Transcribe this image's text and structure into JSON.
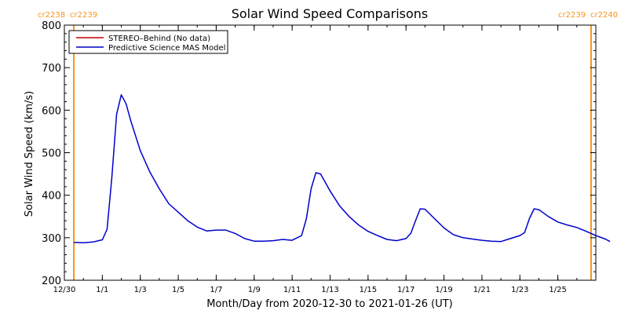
{
  "chart_data": {
    "type": "line",
    "title": "Solar Wind Speed Comparisons",
    "xlabel": "Month/Day from 2020-12-30 to 2021-01-26 (UT)",
    "ylabel": "Solar Wind Speed (km/s)",
    "ylim": [
      200,
      800
    ],
    "xlim": [
      "2020-12-30",
      "2021-01-27"
    ],
    "yticks": [
      200,
      300,
      400,
      500,
      600,
      700,
      800
    ],
    "xticks": [
      {
        "date": "2020-12-30",
        "label": "12/30"
      },
      {
        "date": "2021-01-01",
        "label": "1/1"
      },
      {
        "date": "2021-01-03",
        "label": "1/3"
      },
      {
        "date": "2021-01-05",
        "label": "1/5"
      },
      {
        "date": "2021-01-07",
        "label": "1/7"
      },
      {
        "date": "2021-01-09",
        "label": "1/9"
      },
      {
        "date": "2021-01-11",
        "label": "1/11"
      },
      {
        "date": "2021-01-13",
        "label": "1/13"
      },
      {
        "date": "2021-01-15",
        "label": "1/15"
      },
      {
        "date": "2021-01-17",
        "label": "1/17"
      },
      {
        "date": "2021-01-19",
        "label": "1/19"
      },
      {
        "date": "2021-01-21",
        "label": "1/21"
      },
      {
        "date": "2021-01-23",
        "label": "1/23"
      },
      {
        "date": "2021-01-25",
        "label": "1/25"
      }
    ],
    "carrington_markers": [
      {
        "date": "2020-12-30 12:00",
        "label_left": "cr2238",
        "label_right": "cr2239",
        "color": "#f7941d"
      },
      {
        "date": "2021-01-26 18:00",
        "label_left": "cr2239",
        "label_right": "cr2240",
        "color": "#f7941d"
      }
    ],
    "legend": {
      "placement": "top-left"
    },
    "series": [
      {
        "name": "STEREO–Behind (No data)",
        "color": "#c00000",
        "points": []
      },
      {
        "name": "Predictive Science MAS Model",
        "color": "#0000cc",
        "points": [
          [
            "2020-12-30 12:00",
            289
          ],
          [
            "2020-12-31 00:00",
            288
          ],
          [
            "2020-12-31 12:00",
            290
          ],
          [
            "2021-01-01 00:00",
            295
          ],
          [
            "2021-01-01 06:00",
            320
          ],
          [
            "2021-01-01 12:00",
            440
          ],
          [
            "2021-01-01 18:00",
            590
          ],
          [
            "2021-01-02 00:00",
            636
          ],
          [
            "2021-01-02 06:00",
            615
          ],
          [
            "2021-01-02 12:00",
            575
          ],
          [
            "2021-01-03 00:00",
            505
          ],
          [
            "2021-01-03 12:00",
            455
          ],
          [
            "2021-01-04 00:00",
            415
          ],
          [
            "2021-01-04 12:00",
            380
          ],
          [
            "2021-01-05 00:00",
            360
          ],
          [
            "2021-01-05 12:00",
            340
          ],
          [
            "2021-01-06 00:00",
            325
          ],
          [
            "2021-01-06 12:00",
            316
          ],
          [
            "2021-01-07 00:00",
            318
          ],
          [
            "2021-01-07 12:00",
            318
          ],
          [
            "2021-01-08 00:00",
            310
          ],
          [
            "2021-01-08 12:00",
            298
          ],
          [
            "2021-01-09 00:00",
            292
          ],
          [
            "2021-01-09 12:00",
            292
          ],
          [
            "2021-01-10 00:00",
            293
          ],
          [
            "2021-01-10 12:00",
            296
          ],
          [
            "2021-01-11 00:00",
            294
          ],
          [
            "2021-01-11 12:00",
            305
          ],
          [
            "2021-01-11 18:00",
            345
          ],
          [
            "2021-01-12 00:00",
            415
          ],
          [
            "2021-01-12 06:00",
            453
          ],
          [
            "2021-01-12 12:00",
            450
          ],
          [
            "2021-01-13 00:00",
            410
          ],
          [
            "2021-01-13 12:00",
            375
          ],
          [
            "2021-01-14 00:00",
            350
          ],
          [
            "2021-01-14 12:00",
            330
          ],
          [
            "2021-01-15 00:00",
            315
          ],
          [
            "2021-01-15 12:00",
            305
          ],
          [
            "2021-01-16 00:00",
            296
          ],
          [
            "2021-01-16 12:00",
            293
          ],
          [
            "2021-01-17 00:00",
            298
          ],
          [
            "2021-01-17 06:00",
            310
          ],
          [
            "2021-01-17 12:00",
            340
          ],
          [
            "2021-01-17 18:00",
            368
          ],
          [
            "2021-01-18 00:00",
            367
          ],
          [
            "2021-01-18 12:00",
            345
          ],
          [
            "2021-01-19 00:00",
            323
          ],
          [
            "2021-01-19 12:00",
            307
          ],
          [
            "2021-01-20 00:00",
            300
          ],
          [
            "2021-01-20 12:00",
            297
          ],
          [
            "2021-01-21 00:00",
            294
          ],
          [
            "2021-01-21 12:00",
            292
          ],
          [
            "2021-01-22 00:00",
            291
          ],
          [
            "2021-01-22 12:00",
            298
          ],
          [
            "2021-01-23 00:00",
            305
          ],
          [
            "2021-01-23 06:00",
            312
          ],
          [
            "2021-01-23 12:00",
            345
          ],
          [
            "2021-01-23 18:00",
            368
          ],
          [
            "2021-01-24 00:00",
            366
          ],
          [
            "2021-01-24 12:00",
            350
          ],
          [
            "2021-01-25 00:00",
            337
          ],
          [
            "2021-01-25 12:00",
            330
          ],
          [
            "2021-01-26 00:00",
            324
          ],
          [
            "2021-01-26 12:00",
            315
          ],
          [
            "2021-01-27 00:00",
            305
          ],
          [
            "2021-01-27 12:00",
            297
          ],
          [
            "2021-01-27 18:00",
            291
          ]
        ]
      }
    ]
  }
}
